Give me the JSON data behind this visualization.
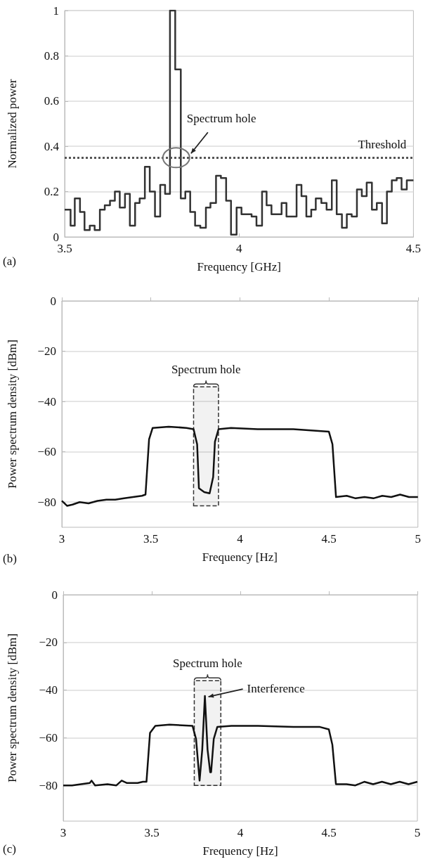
{
  "chart_data": [
    {
      "type": "step",
      "xlabel": "Frequency [GHz]",
      "ylabel": "Normalized power",
      "x": [
        3.5,
        3.517,
        3.529,
        3.544,
        3.557,
        3.572,
        3.586,
        3.601,
        3.615,
        3.63,
        3.644,
        3.658,
        3.673,
        3.687,
        3.702,
        3.715,
        3.73,
        3.744,
        3.759,
        3.774,
        3.788,
        3.802,
        3.817,
        3.833,
        3.846,
        3.86,
        3.874,
        3.889,
        3.905,
        3.918,
        3.934,
        3.948,
        3.963,
        3.977,
        3.993,
        4.007,
        4.023,
        4.036,
        4.05,
        4.066,
        4.079,
        4.093,
        4.108,
        4.122,
        4.136,
        4.151,
        4.165,
        4.179,
        4.193,
        4.207,
        4.22,
        4.236,
        4.251,
        4.266,
        4.28,
        4.295,
        4.309,
        4.323,
        4.338,
        4.352,
        4.366,
        4.381,
        4.395,
        4.41,
        4.424,
        4.438,
        4.452,
        4.466,
        4.481,
        4.5
      ],
      "values": [
        0.12,
        0.05,
        0.17,
        0.11,
        0.03,
        0.05,
        0.03,
        0.12,
        0.14,
        0.16,
        0.2,
        0.13,
        0.19,
        0.05,
        0.15,
        0.17,
        0.31,
        0.2,
        0.09,
        0.23,
        0.19,
        1.0,
        0.74,
        0.17,
        0.2,
        0.11,
        0.05,
        0.04,
        0.13,
        0.15,
        0.27,
        0.26,
        0.16,
        0.01,
        0.13,
        0.1,
        0.1,
        0.09,
        0.05,
        0.2,
        0.14,
        0.1,
        0.1,
        0.15,
        0.09,
        0.09,
        0.23,
        0.18,
        0.09,
        0.12,
        0.17,
        0.15,
        0.12,
        0.25,
        0.1,
        0.04,
        0.1,
        0.09,
        0.21,
        0.18,
        0.24,
        0.12,
        0.15,
        0.06,
        0.2,
        0.25,
        0.26,
        0.21,
        0.25,
        0.25
      ],
      "color": "#333333",
      "xlim": [
        3.5,
        4.5
      ],
      "xticks": [
        3.5,
        4,
        4.5
      ],
      "ylim": [
        0,
        1
      ],
      "yticks": [
        0,
        0.2,
        0.4,
        0.6,
        0.8,
        1
      ],
      "grid": "y",
      "ref_lines": [
        {
          "axis": "y",
          "value": 0.35,
          "label": "Threshold",
          "color": "#555555",
          "line_style": "dotted"
        }
      ],
      "annotations": [
        {
          "text": "Spectrum hole",
          "x": 3.82,
          "y": 0.35
        },
        "(a)"
      ]
    },
    {
      "type": "line",
      "xlabel": "Frequency [Hz]",
      "ylabel": "Power spectrum density [dBm]",
      "x": [
        3.0,
        3.03,
        3.06,
        3.1,
        3.15,
        3.2,
        3.25,
        3.3,
        3.35,
        3.4,
        3.45,
        3.47,
        3.49,
        3.51,
        3.6,
        3.7,
        3.74,
        3.76,
        3.77,
        3.8,
        3.83,
        3.85,
        3.86,
        3.88,
        3.95,
        4.1,
        4.2,
        4.3,
        4.4,
        4.5,
        4.52,
        4.54,
        4.6,
        4.65,
        4.7,
        4.75,
        4.8,
        4.85,
        4.9,
        4.95,
        5.0
      ],
      "values": [
        -79.5,
        -81.5,
        -81,
        -80,
        -80.5,
        -79.5,
        -79,
        -79,
        -78.5,
        -78,
        -77.5,
        -77,
        -55,
        -50.5,
        -50,
        -50.5,
        -51,
        -57,
        -74.5,
        -76,
        -76.5,
        -70,
        -56,
        -51,
        -50.5,
        -51,
        -51,
        -51,
        -51.5,
        -52,
        -57,
        -78,
        -77.5,
        -78.5,
        -78,
        -78.5,
        -77.5,
        -78,
        -77,
        -78,
        -78
      ],
      "color": "#111111",
      "xlim": [
        3,
        5
      ],
      "xticks": [
        3,
        3.5,
        4,
        4.5,
        5
      ],
      "ylim": [
        -90,
        0
      ],
      "yticks": [
        {
          "value": -80,
          "label": "−80"
        },
        {
          "value": -60,
          "label": "−60"
        },
        {
          "value": -40,
          "label": "−40"
        },
        {
          "value": -20,
          "label": "−20"
        },
        0
      ],
      "grid": "y",
      "bands": [
        {
          "axis": "x",
          "from": 3.74,
          "to": 3.88,
          "label": "Spectrum hole",
          "color": "#333333"
        }
      ],
      "annotations": [
        "(b)"
      ]
    },
    {
      "type": "line",
      "xlabel": "Frequency [Hz]",
      "ylabel": "Power spectrum density [dBm]",
      "x": [
        3.0,
        3.05,
        3.1,
        3.15,
        3.16,
        3.18,
        3.25,
        3.3,
        3.33,
        3.36,
        3.42,
        3.45,
        3.47,
        3.49,
        3.52,
        3.6,
        3.73,
        3.75,
        3.77,
        3.785,
        3.8,
        3.815,
        3.83,
        3.835,
        3.85,
        3.87,
        3.95,
        4.1,
        4.3,
        4.45,
        4.5,
        4.52,
        4.54,
        4.6,
        4.65,
        4.7,
        4.75,
        4.8,
        4.85,
        4.9,
        4.95,
        5.0
      ],
      "values": [
        -80,
        -80,
        -79.5,
        -79,
        -78,
        -80,
        -79.5,
        -80,
        -78,
        -79,
        -79,
        -78.5,
        -78.5,
        -58,
        -55,
        -54.5,
        -55,
        -60.5,
        -78,
        -65,
        -42.5,
        -65,
        -74.5,
        -74.5,
        -60.5,
        -55.5,
        -55,
        -55,
        -55.5,
        -55.5,
        -56.5,
        -63,
        -79.5,
        -79.5,
        -80,
        -78.5,
        -79.5,
        -78.5,
        -79.5,
        -78.5,
        -79.5,
        -78.5
      ],
      "color": "#111111",
      "xlim": [
        3,
        5
      ],
      "xticks": [
        3,
        3.5,
        4,
        4.5,
        5
      ],
      "ylim": [
        -95,
        0
      ],
      "yticks": [
        {
          "value": -80,
          "label": "−80"
        },
        {
          "value": -60,
          "label": "−60"
        },
        {
          "value": -40,
          "label": "−40"
        },
        {
          "value": -20,
          "label": "−20"
        },
        0
      ],
      "grid": "y",
      "bands": [
        {
          "axis": "x",
          "from": 3.74,
          "to": 3.89,
          "label": "Spectrum hole",
          "color": "#333333"
        }
      ],
      "annotations": [
        {
          "text": "Interference",
          "x": 3.8,
          "y": -42.5
        },
        "(c)"
      ]
    }
  ]
}
